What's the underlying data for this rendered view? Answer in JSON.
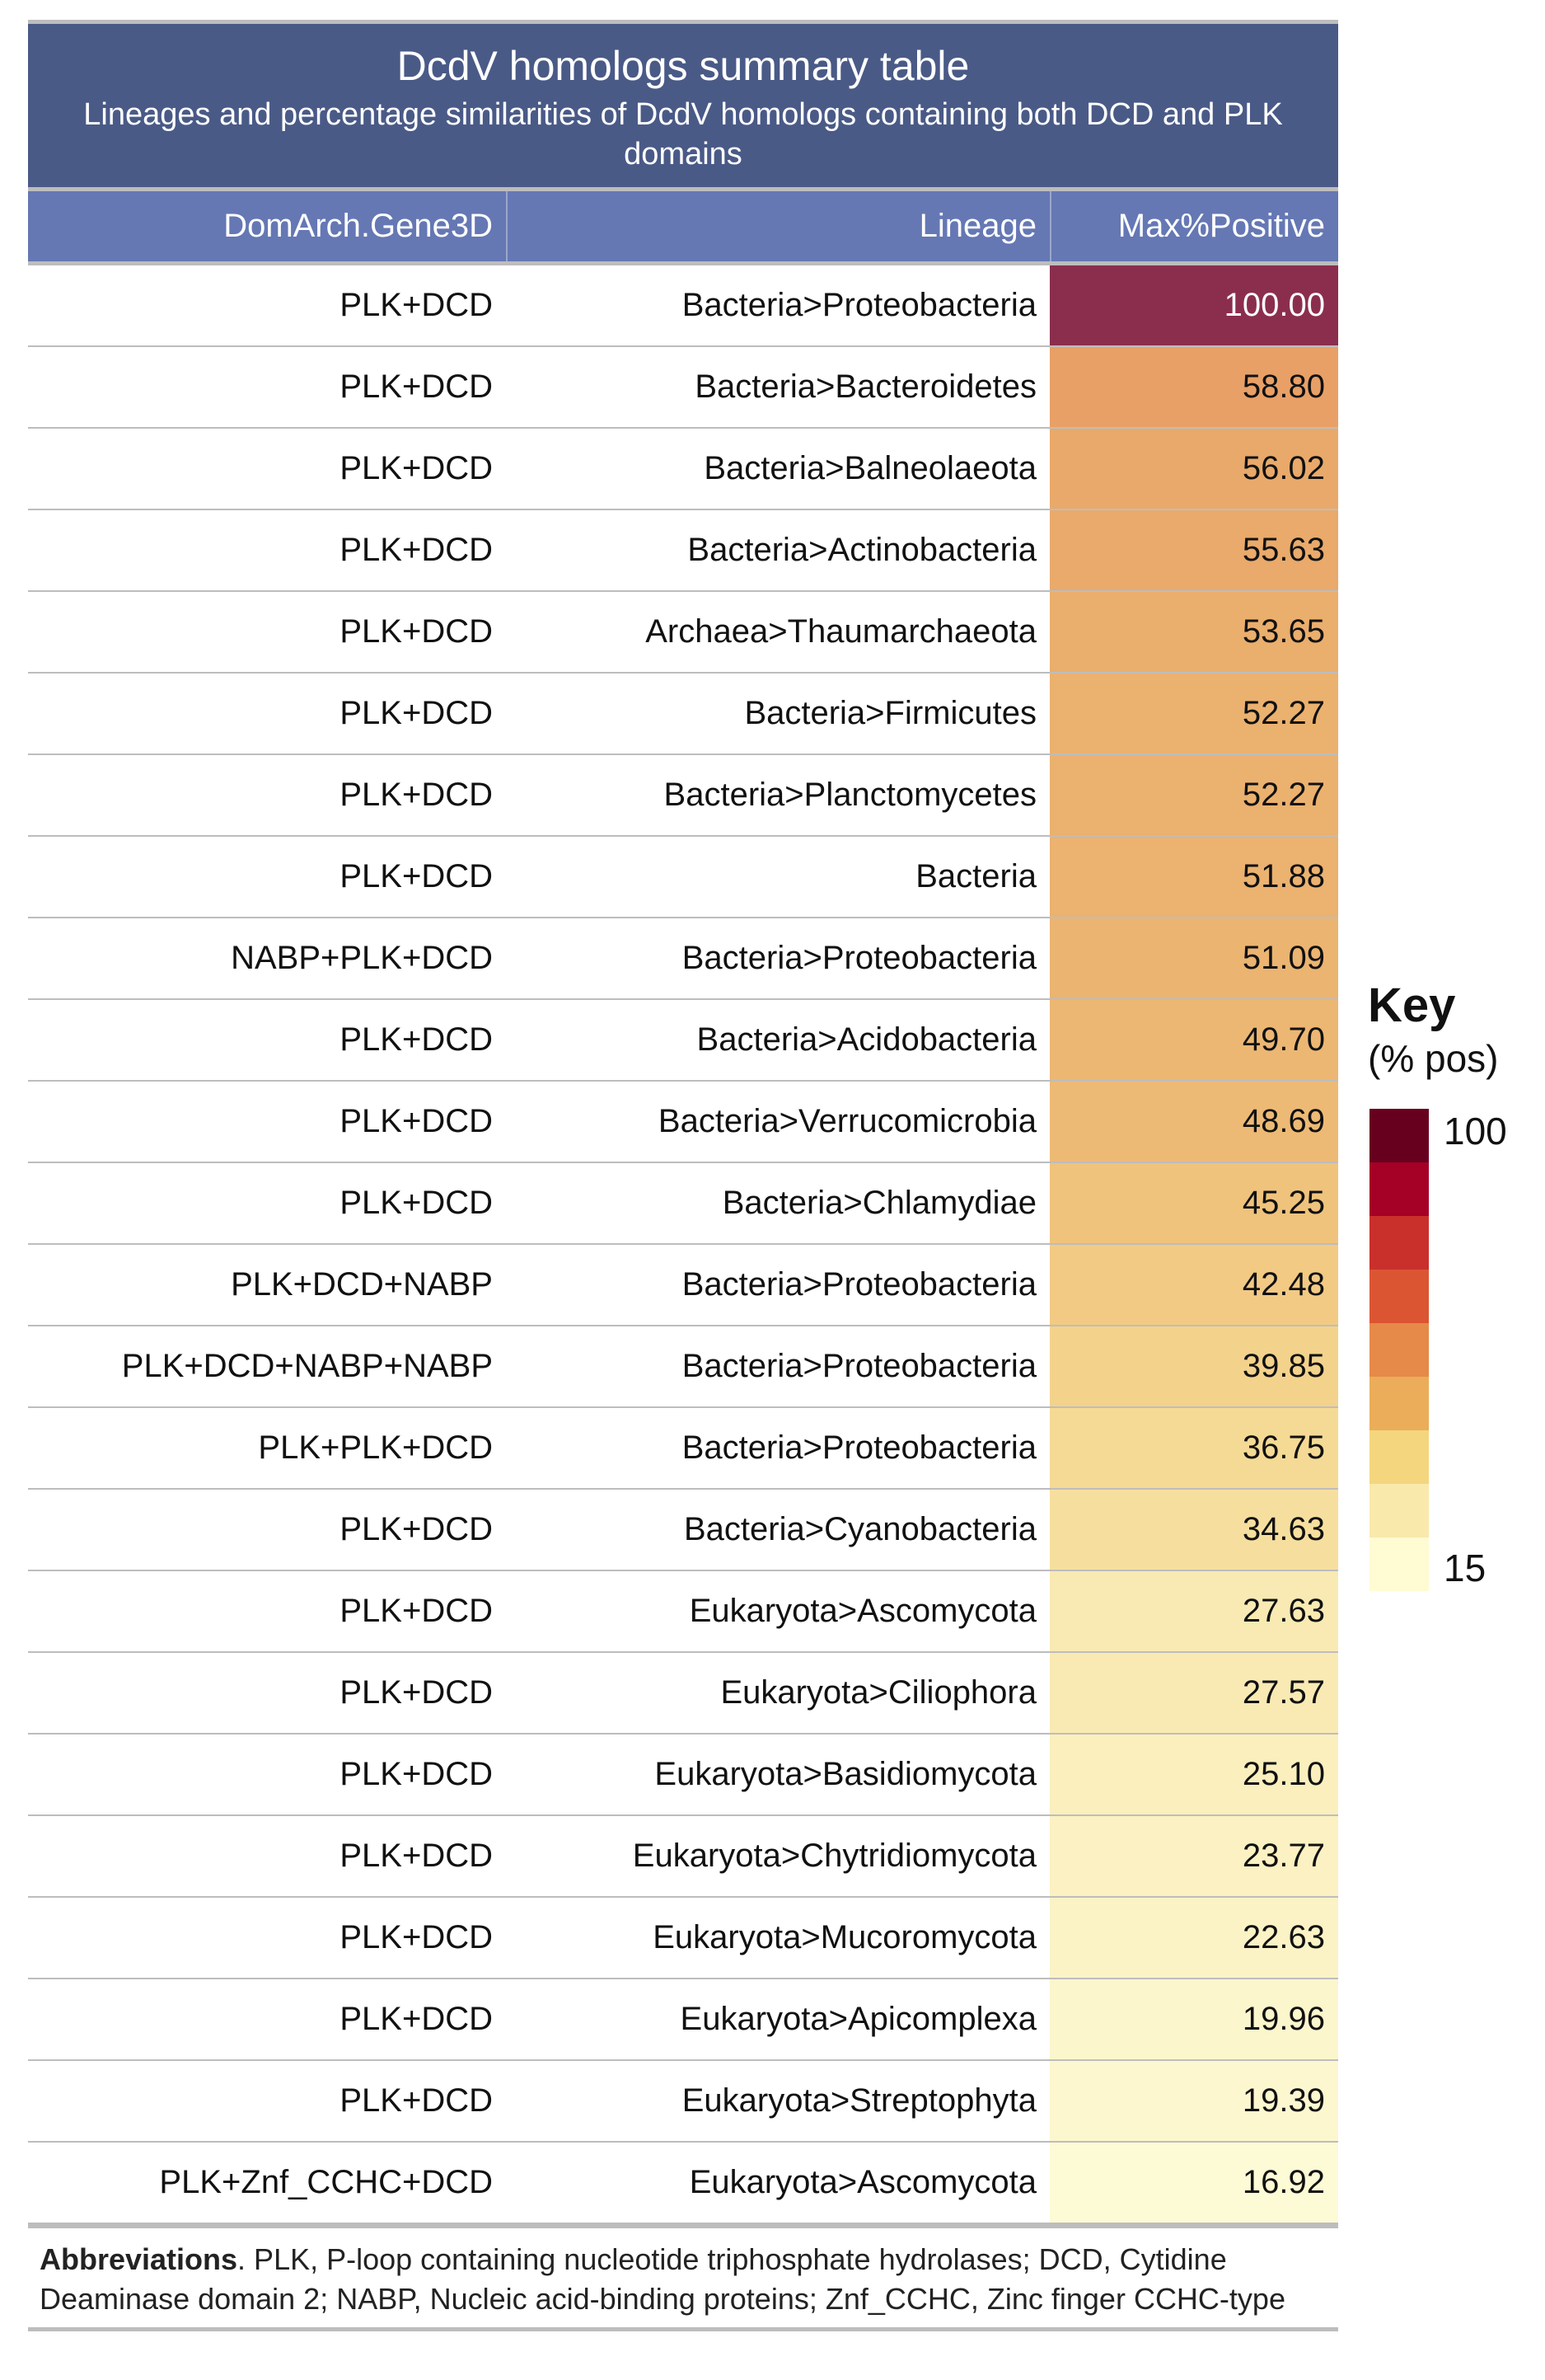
{
  "title": "DcdV homologs summary table",
  "subtitle": "Lineages and percentage similarities of DcdV homologs containing both DCD and PLK domains",
  "columns": [
    "DomArch.Gene3D",
    "Lineage",
    "Max%Positive"
  ],
  "rows": [
    {
      "domarch": "PLK+DCD",
      "lineage": "Bacteria>Proteobacteria",
      "maxpos": "100.00",
      "color": "#8b2e4e",
      "text_color": "#ffffff"
    },
    {
      "domarch": "PLK+DCD",
      "lineage": "Bacteria>Bacteroidetes",
      "maxpos": "58.80",
      "color": "#e8a066",
      "text_color": "#111111"
    },
    {
      "domarch": "PLK+DCD",
      "lineage": "Bacteria>Balneolaeota",
      "maxpos": "56.02",
      "color": "#e9a96a",
      "text_color": "#111111"
    },
    {
      "domarch": "PLK+DCD",
      "lineage": "Bacteria>Actinobacteria",
      "maxpos": "55.63",
      "color": "#e9aa6b",
      "text_color": "#111111"
    },
    {
      "domarch": "PLK+DCD",
      "lineage": "Archaea>Thaumarchaeota",
      "maxpos": "53.65",
      "color": "#eaae6d",
      "text_color": "#111111"
    },
    {
      "domarch": "PLK+DCD",
      "lineage": "Bacteria>Firmicutes",
      "maxpos": "52.27",
      "color": "#ebb16f",
      "text_color": "#111111"
    },
    {
      "domarch": "PLK+DCD",
      "lineage": "Bacteria>Planctomycetes",
      "maxpos": "52.27",
      "color": "#ebb16f",
      "text_color": "#111111"
    },
    {
      "domarch": "PLK+DCD",
      "lineage": "Bacteria",
      "maxpos": "51.88",
      "color": "#ebb270",
      "text_color": "#111111"
    },
    {
      "domarch": "NABP+PLK+DCD",
      "lineage": "Bacteria>Proteobacteria",
      "maxpos": "51.09",
      "color": "#ebb471",
      "text_color": "#111111"
    },
    {
      "domarch": "PLK+DCD",
      "lineage": "Bacteria>Acidobacteria",
      "maxpos": "49.70",
      "color": "#ecb773",
      "text_color": "#111111"
    },
    {
      "domarch": "PLK+DCD",
      "lineage": "Bacteria>Verrucomicrobia",
      "maxpos": "48.69",
      "color": "#edba75",
      "text_color": "#111111"
    },
    {
      "domarch": "PLK+DCD",
      "lineage": "Bacteria>Chlamydiae",
      "maxpos": "45.25",
      "color": "#efc37c",
      "text_color": "#111111"
    },
    {
      "domarch": "PLK+DCD+NABP",
      "lineage": "Bacteria>Proteobacteria",
      "maxpos": "42.48",
      "color": "#f2ca84",
      "text_color": "#111111"
    },
    {
      "domarch": "PLK+DCD+NABP+NABP",
      "lineage": "Bacteria>Proteobacteria",
      "maxpos": "39.85",
      "color": "#f3d28c",
      "text_color": "#111111"
    },
    {
      "domarch": "PLK+PLK+DCD",
      "lineage": "Bacteria>Proteobacteria",
      "maxpos": "36.75",
      "color": "#f5da95",
      "text_color": "#111111"
    },
    {
      "domarch": "PLK+DCD",
      "lineage": "Bacteria>Cyanobacteria",
      "maxpos": "34.63",
      "color": "#f6df9e",
      "text_color": "#111111"
    },
    {
      "domarch": "PLK+DCD",
      "lineage": "Eukaryota>Ascomycota",
      "maxpos": "27.63",
      "color": "#f9eab4",
      "text_color": "#111111"
    },
    {
      "domarch": "PLK+DCD",
      "lineage": "Eukaryota>Ciliophora",
      "maxpos": "27.57",
      "color": "#f9eab4",
      "text_color": "#111111"
    },
    {
      "domarch": "PLK+DCD",
      "lineage": "Eukaryota>Basidiomycota",
      "maxpos": "25.10",
      "color": "#faefbd",
      "text_color": "#111111"
    },
    {
      "domarch": "PLK+DCD",
      "lineage": "Eukaryota>Chytridiomycota",
      "maxpos": "23.77",
      "color": "#fbf1c2",
      "text_color": "#111111"
    },
    {
      "domarch": "PLK+DCD",
      "lineage": "Eukaryota>Mucoromycota",
      "maxpos": "22.63",
      "color": "#fbf3c6",
      "text_color": "#111111"
    },
    {
      "domarch": "PLK+DCD",
      "lineage": "Eukaryota>Apicomplexa",
      "maxpos": "19.96",
      "color": "#fcf6cd",
      "text_color": "#111111"
    },
    {
      "domarch": "PLK+DCD",
      "lineage": "Eukaryota>Streptophyta",
      "maxpos": "19.39",
      "color": "#fcf7cf",
      "text_color": "#111111"
    },
    {
      "domarch": "PLK+Znf_CCHC+DCD",
      "lineage": "Eukaryota>Ascomycota",
      "maxpos": "16.92",
      "color": "#fdfad6",
      "text_color": "#111111"
    }
  ],
  "abbreviations": {
    "label": "Abbreviations",
    "text": ". PLK, P-loop containing nucleotide triphosphate hydrolases; DCD, Cytidine Deaminase domain 2; NABP, Nucleic acid-binding proteins; Znf_CCHC, Zinc finger CCHC-type"
  },
  "key": {
    "title": "Key",
    "subtitle": "(% pos)",
    "max_label": "100",
    "min_label": "15",
    "colors": [
      "#67001f",
      "#a50026",
      "#c9302b",
      "#dc5532",
      "#e58a48",
      "#ebad5a",
      "#f4d67e",
      "#f9e9ab",
      "#fffbd3"
    ]
  }
}
